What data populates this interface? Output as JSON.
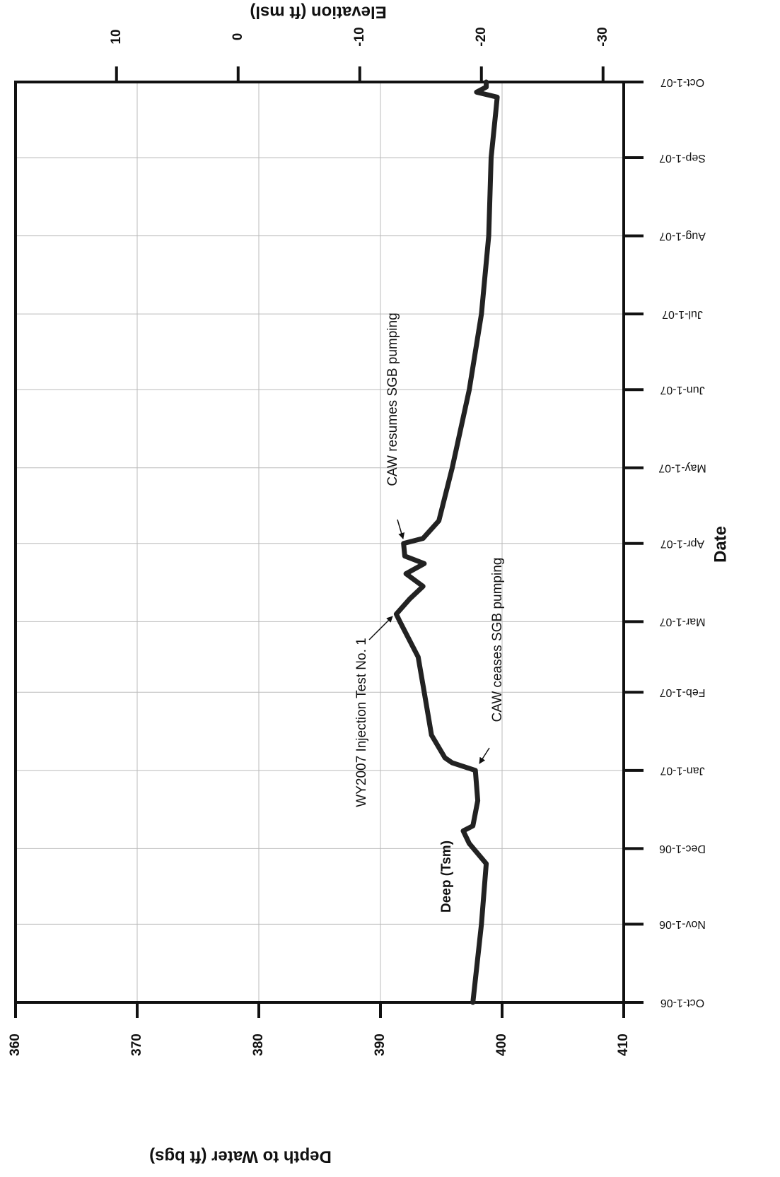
{
  "chart_data": {
    "type": "line",
    "x_label": "Date",
    "y_label": "Depth to Water (ft bgs)",
    "y2_label": "Elevation (ft msl)",
    "xlim": [
      "2006-10-01",
      "2007-10-01"
    ],
    "xticks": [
      {
        "value": "2006-10-01",
        "label": "Oct-1-06"
      },
      {
        "value": "2006-11-01",
        "label": "Nov-1-06"
      },
      {
        "value": "2006-12-01",
        "label": "Dec-1-06"
      },
      {
        "value": "2007-01-01",
        "label": "Jan-1-07"
      },
      {
        "value": "2007-02-01",
        "label": "Feb-1-07"
      },
      {
        "value": "2007-03-01",
        "label": "Mar-1-07"
      },
      {
        "value": "2007-04-01",
        "label": "Apr-1-07"
      },
      {
        "value": "2007-05-01",
        "label": "May-1-07"
      },
      {
        "value": "2007-06-01",
        "label": "Jun-1-07"
      },
      {
        "value": "2007-07-01",
        "label": "Jul-1-07"
      },
      {
        "value": "2007-08-01",
        "label": "Aug-1-07"
      },
      {
        "value": "2007-09-01",
        "label": "Sep-1-07"
      },
      {
        "value": "2007-10-01",
        "label": "Oct-1-07"
      }
    ],
    "ylim": [
      360,
      410
    ],
    "yticks": [
      360,
      370,
      380,
      390,
      400,
      410
    ],
    "y2lim": [
      18.3,
      -31.7
    ],
    "y2ticks": [
      10,
      0,
      -10,
      -20,
      -30
    ],
    "grid": true,
    "x": [
      "2006-10-01",
      "2006-11-01",
      "2006-11-25",
      "2006-12-03",
      "2006-12-08",
      "2006-12-10",
      "2006-12-20",
      "2007-01-01",
      "2007-01-04",
      "2007-01-06",
      "2007-01-15",
      "2007-02-01",
      "2007-02-15",
      "2007-03-01",
      "2007-03-04",
      "2007-03-10",
      "2007-03-15",
      "2007-03-20",
      "2007-03-24",
      "2007-03-27",
      "2007-04-01",
      "2007-04-03",
      "2007-04-10",
      "2007-05-01",
      "2007-06-01",
      "2007-07-01",
      "2007-08-01",
      "2007-09-01",
      "2007-09-20",
      "2007-09-25",
      "2007-09-27",
      "2007-09-29",
      "2007-10-01"
    ],
    "series": [
      {
        "name": "Deep (Tsm)",
        "color": "#222222",
        "values": [
          397.6,
          398.3,
          398.7,
          397.3,
          396.8,
          397.6,
          398.0,
          397.8,
          395.9,
          395.3,
          394.2,
          393.6,
          393.1,
          391.6,
          391.3,
          392.4,
          393.5,
          392.1,
          393.6,
          392.0,
          391.9,
          393.5,
          394.8,
          395.9,
          397.3,
          398.3,
          398.9,
          399.1,
          399.5,
          399.6,
          397.9,
          398.7,
          398.7
        ]
      }
    ],
    "annotations": [
      {
        "text": "CAW resumes SGB pumping"
      },
      {
        "text": "WY2007 Injection Test No. 1"
      },
      {
        "text": "CAW ceases SGB pumping"
      }
    ]
  }
}
